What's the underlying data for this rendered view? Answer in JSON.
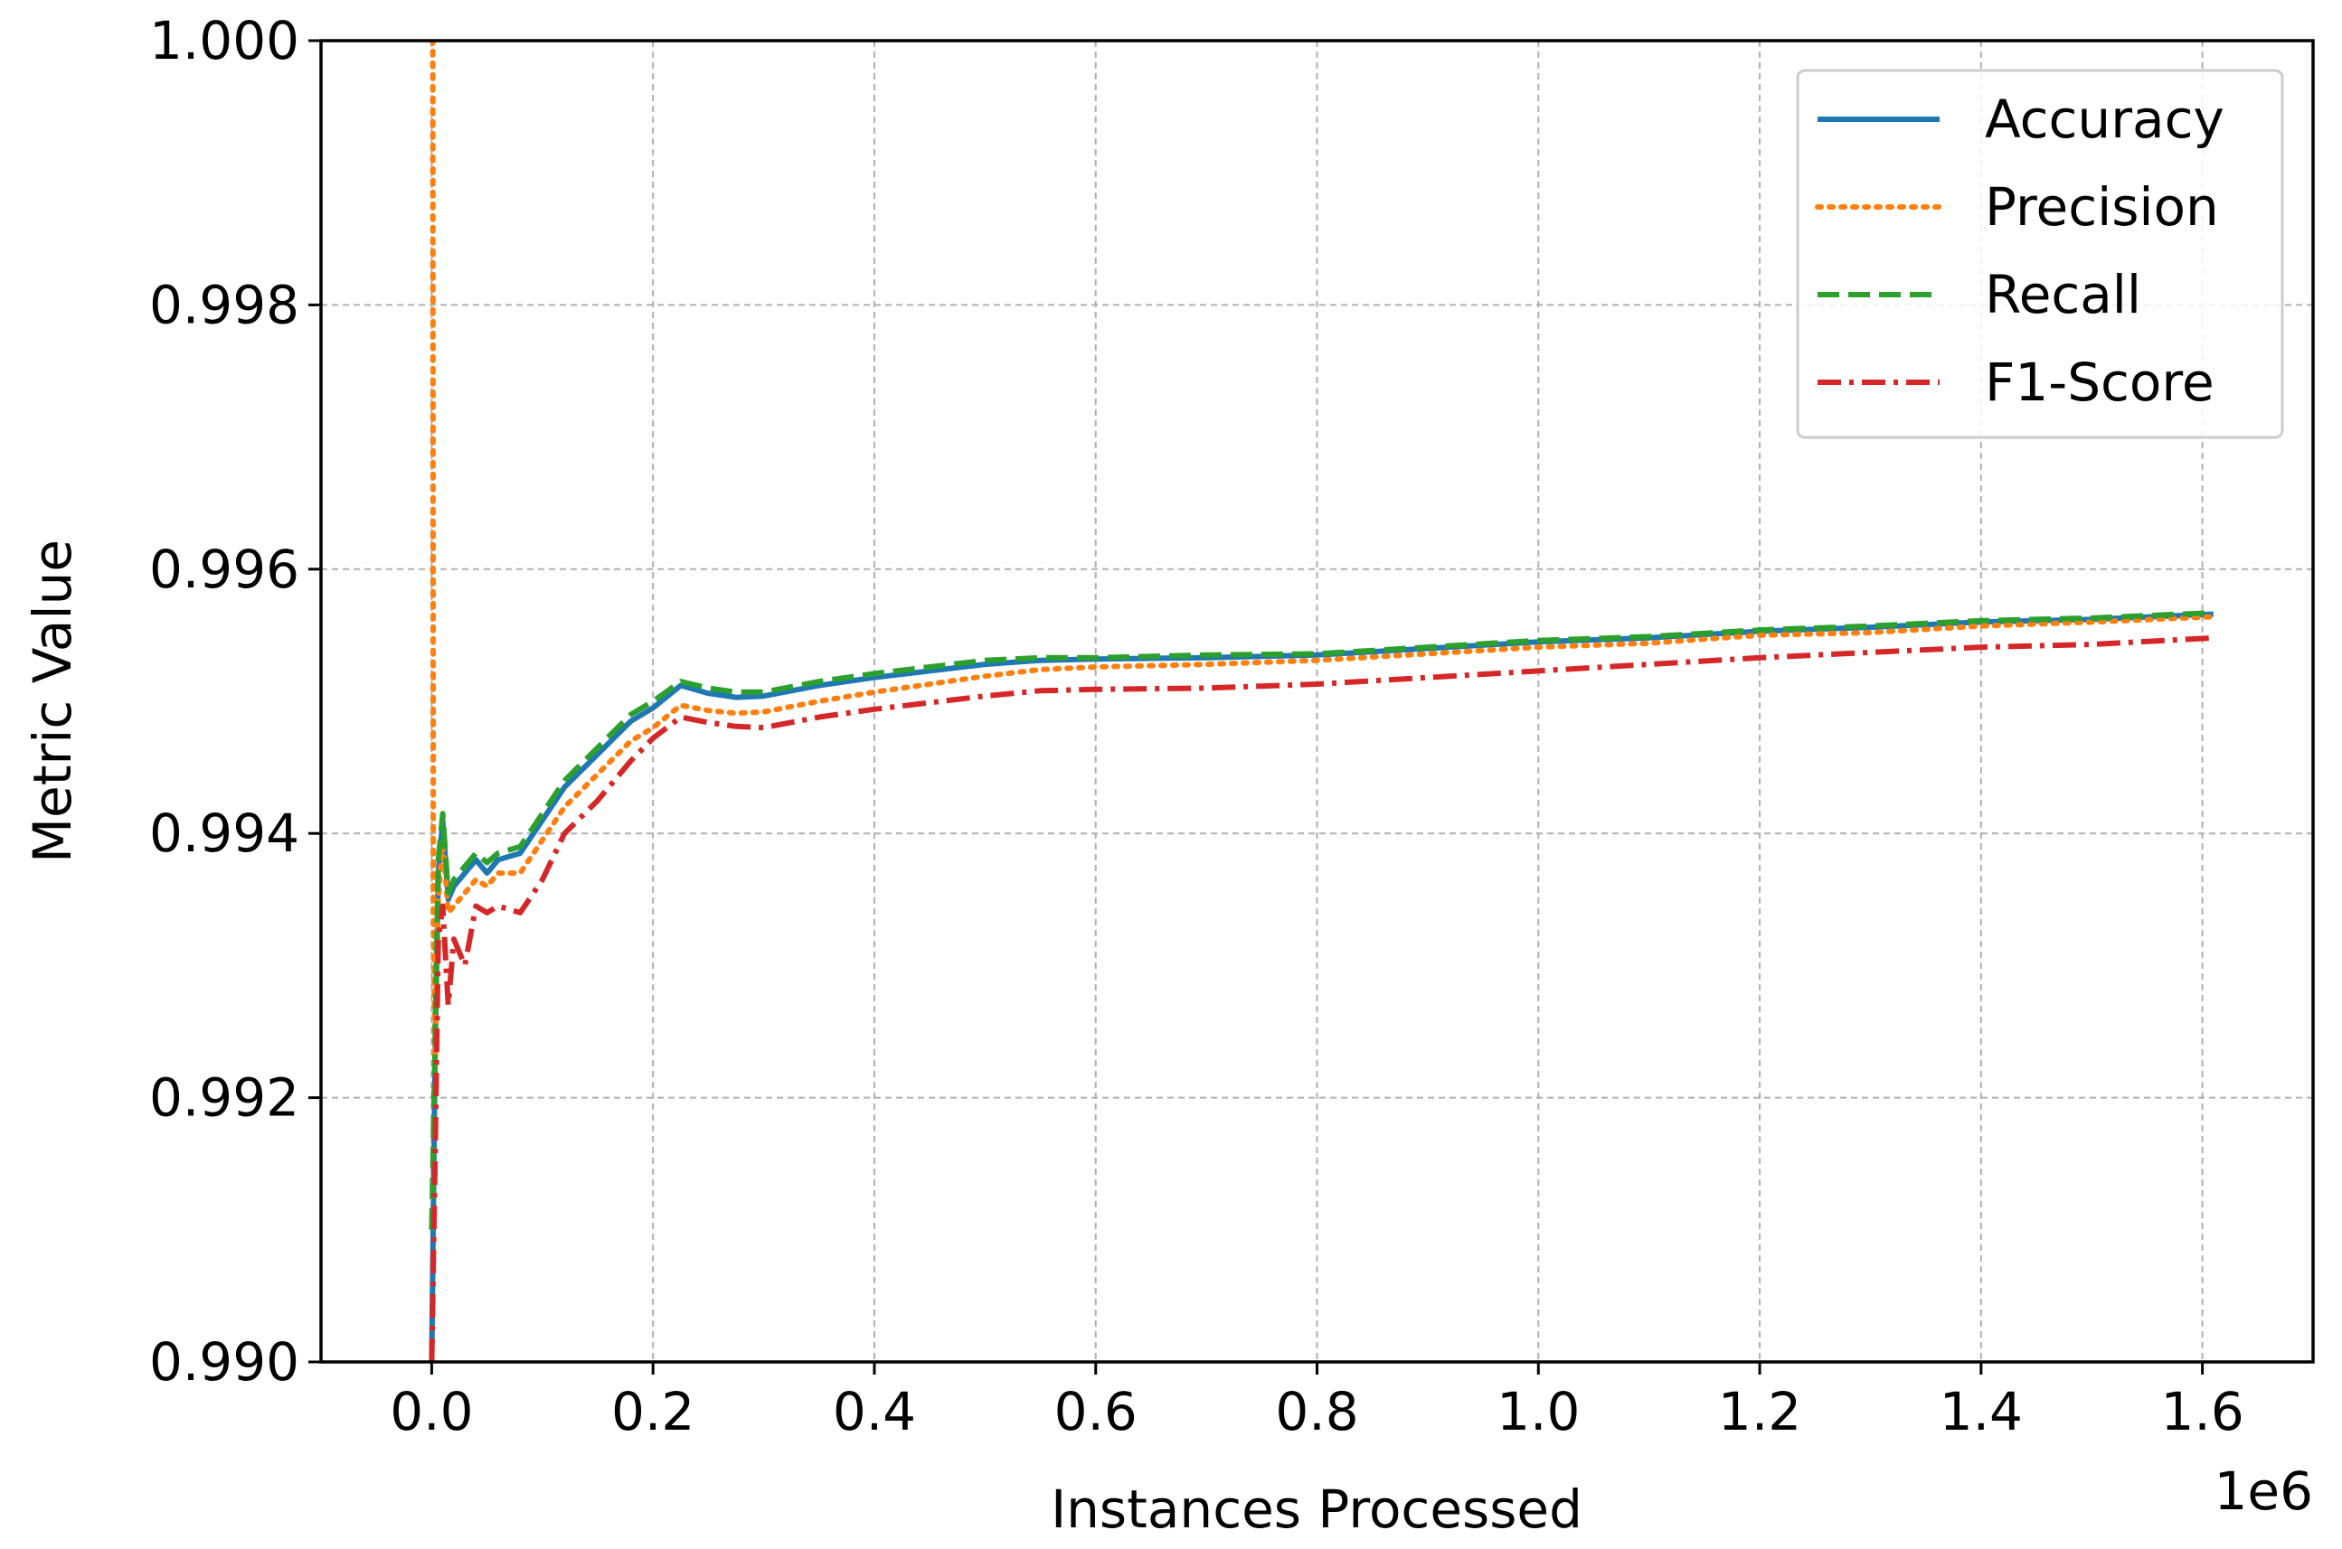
{
  "chart_data": {
    "type": "line",
    "title": "",
    "xlabel": "Instances Processed",
    "ylabel": "Metric Value",
    "x_offset_label": "1e6",
    "xlim": [
      -100000,
      1700000
    ],
    "ylim": [
      0.99,
      1.0
    ],
    "x_ticks": [
      0,
      200000,
      400000,
      600000,
      800000,
      1000000,
      1200000,
      1400000,
      1600000
    ],
    "x_tick_labels": [
      "0.0",
      "0.2",
      "0.4",
      "0.6",
      "0.8",
      "1.0",
      "1.2",
      "1.4",
      "1.6"
    ],
    "y_ticks": [
      0.99,
      0.992,
      0.994,
      0.996,
      0.998,
      1.0
    ],
    "y_tick_labels": [
      "0.990",
      "0.992",
      "0.994",
      "0.996",
      "0.998",
      "1.000"
    ],
    "grid": true,
    "legend": "top-right",
    "series": [
      {
        "name": "Accuracy",
        "color": "#1f77b4",
        "style": "solid",
        "x": [
          0,
          3000,
          6000,
          10000,
          15000,
          20000,
          30000,
          40000,
          50000,
          60000,
          80000,
          100000,
          120000,
          150000,
          180000,
          200000,
          225000,
          250000,
          275000,
          300000,
          350000,
          400000,
          450000,
          500000,
          550000,
          600000,
          700000,
          800000,
          900000,
          1000000,
          1100000,
          1200000,
          1300000,
          1400000,
          1500000,
          1610000
        ],
        "y": [
          0.99,
          0.9923,
          0.9937,
          0.9941,
          0.9935,
          0.9936,
          0.9937,
          0.9938,
          0.9937,
          0.9938,
          0.99385,
          0.9941,
          0.99435,
          0.9946,
          0.99485,
          0.99495,
          0.99512,
          0.99506,
          0.99503,
          0.99504,
          0.99512,
          0.99518,
          0.99523,
          0.99528,
          0.99531,
          0.99532,
          0.99533,
          0.99535,
          0.9954,
          0.99545,
          0.99548,
          0.99553,
          0.99556,
          0.9956,
          0.99562,
          0.99566
        ]
      },
      {
        "name": "Precision",
        "color": "#ff7f0e",
        "style": "dotted",
        "x": [
          0,
          1000,
          1500,
          3000,
          6000,
          10000,
          15000,
          20000,
          30000,
          40000,
          50000,
          60000,
          80000,
          100000,
          120000,
          150000,
          180000,
          200000,
          225000,
          250000,
          275000,
          300000,
          350000,
          400000,
          450000,
          500000,
          550000,
          600000,
          700000,
          800000,
          900000,
          1000000,
          1100000,
          1200000,
          1300000,
          1400000,
          1500000,
          1610000
        ],
        "y": [
          1.0,
          1.0,
          0.9934,
          0.9922,
          0.9935,
          0.99395,
          0.9934,
          0.99345,
          0.99355,
          0.99365,
          0.9936,
          0.9937,
          0.9937,
          0.99395,
          0.9942,
          0.99445,
          0.9947,
          0.9948,
          0.99497,
          0.99493,
          0.99491,
          0.99492,
          0.995,
          0.99507,
          0.99513,
          0.99519,
          0.99524,
          0.99526,
          0.99528,
          0.99531,
          0.99536,
          0.99541,
          0.99544,
          0.9955,
          0.99552,
          0.99557,
          0.9956,
          0.99564
        ]
      },
      {
        "name": "Recall",
        "color": "#2ca02c",
        "style": "dashed",
        "x": [
          0,
          3000,
          6000,
          10000,
          15000,
          20000,
          30000,
          40000,
          50000,
          60000,
          80000,
          100000,
          120000,
          150000,
          180000,
          200000,
          225000,
          250000,
          275000,
          300000,
          350000,
          400000,
          450000,
          500000,
          550000,
          600000,
          700000,
          800000,
          900000,
          1000000,
          1100000,
          1200000,
          1300000,
          1400000,
          1500000,
          1610000
        ],
        "y": [
          0.991,
          0.9924,
          0.9938,
          0.99415,
          0.99355,
          0.99365,
          0.99375,
          0.99385,
          0.99378,
          0.99385,
          0.9939,
          0.99415,
          0.9944,
          0.99465,
          0.9949,
          0.995,
          0.99515,
          0.9951,
          0.99507,
          0.99507,
          0.99515,
          0.99521,
          0.99526,
          0.99531,
          0.99533,
          0.99533,
          0.99535,
          0.99536,
          0.99541,
          0.99546,
          0.99549,
          0.99554,
          0.99557,
          0.99561,
          0.99563,
          0.99567
        ]
      },
      {
        "name": "F1-Score",
        "color": "#d62728",
        "style": "dashdot",
        "x": [
          0,
          3000,
          6000,
          10000,
          15000,
          20000,
          30000,
          40000,
          50000,
          60000,
          80000,
          100000,
          120000,
          150000,
          180000,
          200000,
          225000,
          250000,
          275000,
          300000,
          350000,
          400000,
          450000,
          500000,
          550000,
          600000,
          700000,
          800000,
          900000,
          1000000,
          1100000,
          1200000,
          1300000,
          1400000,
          1500000,
          1610000
        ],
        "y": [
          0.99,
          0.9915,
          0.9932,
          0.99345,
          0.9927,
          0.9932,
          0.993,
          0.99345,
          0.9934,
          0.99345,
          0.9934,
          0.99365,
          0.994,
          0.99425,
          0.99455,
          0.99472,
          0.99488,
          0.99484,
          0.99481,
          0.9948,
          0.99488,
          0.99494,
          0.99499,
          0.99504,
          0.99508,
          0.99509,
          0.9951,
          0.99513,
          0.99518,
          0.99523,
          0.99528,
          0.99533,
          0.99537,
          0.99541,
          0.99543,
          0.99548
        ]
      }
    ]
  }
}
